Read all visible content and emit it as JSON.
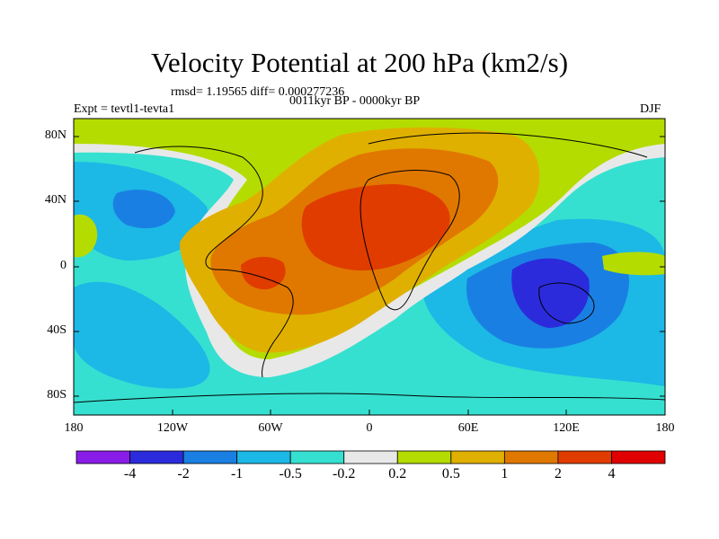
{
  "title": "Velocity Potential at 200 hPa (km2/s)",
  "stats_line": "rmsd= 1.19565 diff= 0.000277236",
  "period_line": "0011kyr BP - 0000kyr BP",
  "experiment": "Expt = tevtl1-tevta1",
  "season": "DJF",
  "lat_labels": [
    "80N",
    "40N",
    "0",
    "40S",
    "80S"
  ],
  "lon_labels": [
    "180",
    "120W",
    "60W",
    "0",
    "60E",
    "120E",
    "180"
  ],
  "colorbar": {
    "colors": [
      "#8a1ce8",
      "#2b2bdc",
      "#1a7fe3",
      "#1cb8e6",
      "#35e0d0",
      "#e8e8e8",
      "#b4dc00",
      "#e0b000",
      "#e07800",
      "#e03c00",
      "#e00000"
    ],
    "labels": [
      "-4",
      "-2",
      "-1",
      "-0.5",
      "-0.2",
      "0.2",
      "0.5",
      "1",
      "2",
      "4"
    ]
  }
}
